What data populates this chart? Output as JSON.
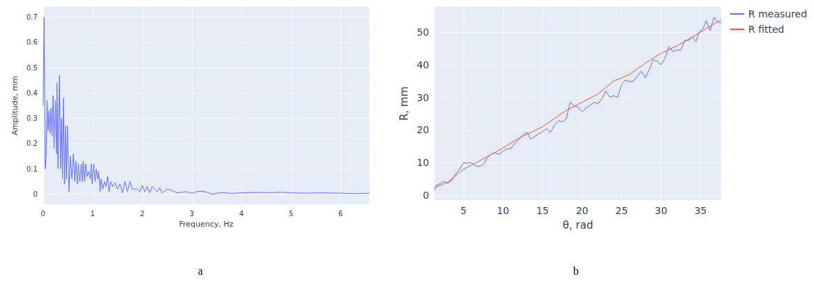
{
  "chart_data": [
    {
      "type": "line",
      "xlabel": "Frequency, Hz",
      "ylabel": "Amplitude, mm",
      "annotations": [
        "a"
      ],
      "xlim": [
        0,
        6.58
      ],
      "ylim": [
        -0.04,
        0.74
      ],
      "xticks": [
        0,
        1,
        2,
        3,
        4,
        5,
        6
      ],
      "yticks": [
        0,
        0.1,
        0.2,
        0.3,
        0.4,
        0.5,
        0.6,
        0.7
      ],
      "grid": true,
      "marker": "none",
      "series": [
        {
          "color": "#636efa",
          "x": [
            0,
            0.02,
            0.04,
            0.06,
            0.08,
            0.1,
            0.12,
            0.14,
            0.16,
            0.18,
            0.2,
            0.22,
            0.25,
            0.27,
            0.28,
            0.3,
            0.31,
            0.33,
            0.35,
            0.37,
            0.39,
            0.41,
            0.43,
            0.45,
            0.47,
            0.49,
            0.52,
            0.55,
            0.58,
            0.61,
            0.64,
            0.66,
            0.69,
            0.71,
            0.74,
            0.77,
            0.79,
            0.81,
            0.84,
            0.86,
            0.89,
            0.92,
            0.95,
            0.97,
            0.99,
            1.02,
            1.05,
            1.07,
            1.1,
            1.12,
            1.15,
            1.17,
            1.2,
            1.24,
            1.27,
            1.3,
            1.33,
            1.36,
            1.4,
            1.45,
            1.5,
            1.55,
            1.6,
            1.65,
            1.7,
            1.75,
            1.8,
            1.9,
            1.95,
            2.0,
            2.05,
            2.1,
            2.15,
            2.2,
            2.3,
            2.35,
            2.4,
            2.5,
            2.6,
            2.7,
            2.8,
            2.9,
            3.0,
            3.1,
            3.2,
            3.3,
            3.4,
            3.6,
            3.8,
            4.0,
            4.3,
            4.6,
            4.8,
            5.0,
            5.3,
            5.6,
            6.0,
            6.3,
            6.58
          ],
          "values": [
            0.35,
            0.7,
            0.1,
            0.15,
            0.37,
            0.25,
            0.33,
            0.24,
            0.34,
            0.23,
            0.39,
            0.18,
            0.37,
            0.16,
            0.44,
            0.1,
            0.23,
            0.47,
            0.1,
            0.3,
            0.06,
            0.38,
            0.04,
            0.27,
            0.06,
            0.27,
            0.01,
            0.15,
            0.06,
            0.16,
            0.05,
            0.13,
            0.04,
            0.12,
            0.05,
            0.12,
            0.05,
            0.13,
            0.05,
            0.12,
            0.07,
            0.09,
            0.06,
            0.12,
            0.04,
            0.12,
            0.05,
            0.1,
            0.06,
            0.09,
            0.01,
            0.06,
            0.02,
            0.05,
            0.03,
            0.07,
            0.01,
            0.05,
            0.03,
            0.045,
            0.02,
            0.04,
            0.005,
            0.05,
            0.01,
            0.05,
            0.02,
            0.02,
            0.01,
            0.035,
            0.01,
            0.03,
            0.005,
            0.03,
            0.01,
            0.025,
            0.005,
            0.02,
            0.015,
            0.005,
            0.008,
            0.01,
            0.003,
            0.01,
            0.012,
            0.008,
            0.0,
            0.006,
            0.003,
            0.005,
            0.007,
            0.006,
            0.008,
            0.005,
            0.004,
            0.005,
            0.004,
            0.002,
            0.004
          ]
        }
      ]
    },
    {
      "type": "line",
      "xlabel": "θ, rad",
      "ylabel": "R, mm",
      "annotations": [
        "b"
      ],
      "xlim": [
        1.35,
        37.6
      ],
      "ylim": [
        -1.5,
        57.7
      ],
      "xticks": [
        5,
        10,
        15,
        20,
        25,
        30,
        35
      ],
      "yticks": [
        0,
        10,
        20,
        30,
        40,
        50
      ],
      "grid": true,
      "marker": "none",
      "legend": "top right",
      "series": [
        {
          "name": "R measured",
          "color": "#636efa",
          "x": [
            1.35,
            1.5,
            2,
            2.5,
            3,
            3.5,
            4,
            4.5,
            5,
            5.5,
            6,
            6.5,
            7,
            7.5,
            8,
            8.5,
            9,
            9.5,
            10,
            10.5,
            11,
            11.5,
            12,
            12.5,
            13,
            13.5,
            14,
            14.5,
            15,
            15.5,
            16,
            16.5,
            17,
            17.5,
            18,
            18.5,
            19,
            19.5,
            20,
            20.5,
            21,
            21.5,
            22,
            22.5,
            23,
            23.5,
            24,
            24.5,
            25,
            25.5,
            26,
            26.5,
            27,
            27.5,
            28,
            28.5,
            29,
            29.5,
            30,
            30.5,
            31,
            31.5,
            32,
            32.5,
            33,
            33.5,
            34,
            34.4,
            34.8,
            35.3,
            35.7,
            36.2,
            36.7,
            37.2,
            37.6
          ],
          "values": [
            1.5,
            3,
            3.5,
            4.2,
            3.7,
            4.5,
            6.5,
            8,
            10,
            9.8,
            10,
            9,
            8.8,
            9.5,
            11.5,
            12.5,
            13,
            12.5,
            13.5,
            14.2,
            14.3,
            16,
            17,
            18.5,
            19.3,
            17.2,
            18,
            18.8,
            19.5,
            20.4,
            19.3,
            21.5,
            22.8,
            22.5,
            23.5,
            28.5,
            27.3,
            27,
            25.5,
            26.8,
            27.5,
            28.5,
            28,
            29.5,
            32,
            30,
            30.5,
            30,
            34,
            35.3,
            34.8,
            35,
            36.5,
            38,
            36,
            38.5,
            41.5,
            41,
            40,
            42,
            45.5,
            44,
            44.5,
            44.5,
            47.5,
            47.5,
            48.5,
            47,
            50,
            51,
            53.5,
            50.5,
            54.5,
            53,
            52.8
          ]
        },
        {
          "name": "R fitted",
          "color": "#ef553b",
          "x": [
            1.35,
            3,
            5,
            7,
            10,
            12,
            15,
            18,
            20,
            22,
            24,
            26,
            28,
            30,
            32,
            34,
            36,
            37.6
          ],
          "values": [
            2.3,
            4,
            8,
            10.5,
            14.5,
            17.5,
            21,
            26,
            28.5,
            31,
            35,
            37,
            40.5,
            43.5,
            45.8,
            48.5,
            51.5,
            53.8
          ]
        }
      ]
    }
  ]
}
